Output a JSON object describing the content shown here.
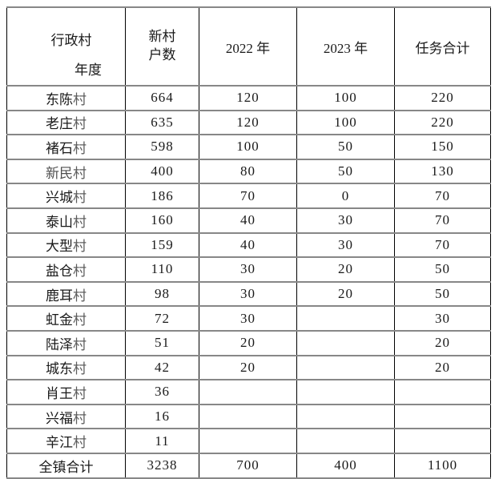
{
  "table": {
    "corner": {
      "row_axis_label": "行政村",
      "col_axis_label": "年度"
    },
    "headers": {
      "households_line1": "新村",
      "households_line2": "户数",
      "y2022": "2022 年",
      "y2023": "2023 年",
      "total": "任务合计"
    },
    "rows": [
      {
        "village": "东陈村",
        "households": "664",
        "y2022": "120",
        "y2023": "100",
        "total": "220"
      },
      {
        "village": "老庄村",
        "households": "635",
        "y2022": "120",
        "y2023": "100",
        "total": "220"
      },
      {
        "village": "褚石村",
        "households": "598",
        "y2022": "100",
        "y2023": "50",
        "total": "150"
      },
      {
        "village": "新民村",
        "households": "400",
        "y2022": "80",
        "y2023": "50",
        "total": "130"
      },
      {
        "village": "兴城村",
        "households": "186",
        "y2022": "70",
        "y2023": "0",
        "total": "70"
      },
      {
        "village": "泰山村",
        "households": "160",
        "y2022": "40",
        "y2023": "30",
        "total": "70"
      },
      {
        "village": "大型村",
        "households": "159",
        "y2022": "40",
        "y2023": "30",
        "total": "70"
      },
      {
        "village": "盐仓村",
        "households": "110",
        "y2022": "30",
        "y2023": "20",
        "total": "50"
      },
      {
        "village": "鹿耳村",
        "households": "98",
        "y2022": "30",
        "y2023": "20",
        "total": "50"
      },
      {
        "village": "虹金村",
        "households": "72",
        "y2022": "30",
        "y2023": "",
        "total": "30"
      },
      {
        "village": "陆泽村",
        "households": "51",
        "y2022": "20",
        "y2023": "",
        "total": "20"
      },
      {
        "village": "城东村",
        "households": "42",
        "y2022": "20",
        "y2023": "",
        "total": "20"
      },
      {
        "village": "肖王村",
        "households": "36",
        "y2022": "",
        "y2023": "",
        "total": ""
      },
      {
        "village": "兴福村",
        "households": "16",
        "y2022": "",
        "y2023": "",
        "total": ""
      },
      {
        "village": "辛江村",
        "households": "11",
        "y2022": "",
        "y2023": "",
        "total": ""
      }
    ],
    "footer": {
      "label": "全镇合计",
      "households": "3238",
      "y2022": "700",
      "y2023": "400",
      "total": "1100"
    },
    "colors": {
      "text": "#1a1a1a",
      "muted_text": "#5c5c5c",
      "horizontal_border": "#878787",
      "vertical_border": "#000000",
      "background": "#ffffff"
    }
  }
}
